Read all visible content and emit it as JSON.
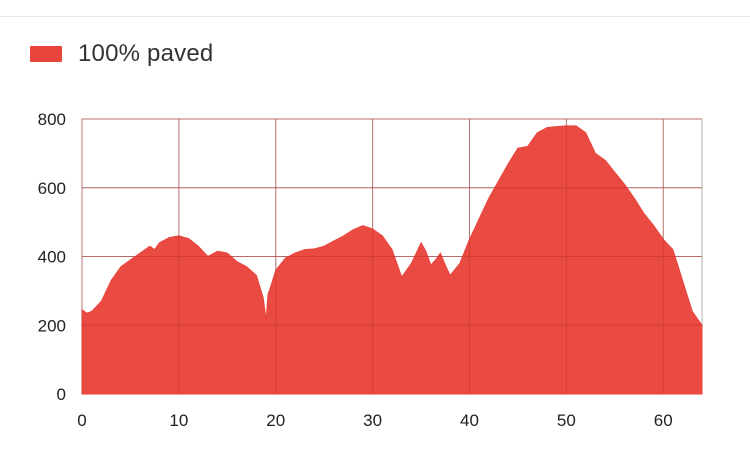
{
  "legend": {
    "label": "100% paved",
    "color": "#e8453c"
  },
  "chart_data": {
    "type": "area",
    "title": "",
    "xlabel": "",
    "ylabel": "",
    "xlim": [
      0,
      64
    ],
    "ylim": [
      0,
      800
    ],
    "x_ticks": [
      0,
      10,
      20,
      30,
      40,
      50,
      60
    ],
    "y_ticks": [
      0,
      200,
      400,
      600,
      800
    ],
    "grid": true,
    "legend_position": "top-left",
    "series": [
      {
        "name": "100% paved",
        "color": "#e8453c",
        "x": [
          0,
          0.5,
          1,
          2,
          3,
          4,
          5,
          6,
          7,
          7.5,
          8,
          9,
          10,
          11,
          12,
          13,
          14,
          15,
          16,
          17,
          18,
          18.7,
          19,
          19.2,
          19.4,
          20,
          21,
          22,
          23,
          24,
          25,
          26,
          27,
          28,
          29,
          30,
          31,
          32,
          33,
          34,
          35,
          35.5,
          36,
          36.5,
          37,
          37.5,
          38,
          39,
          40,
          41,
          42,
          43,
          44,
          45,
          46,
          47,
          48,
          49,
          50,
          51,
          52,
          53,
          54,
          55,
          56,
          57,
          58,
          59,
          60,
          61,
          62,
          63,
          64
        ],
        "values": [
          245,
          235,
          240,
          270,
          330,
          370,
          390,
          410,
          430,
          420,
          440,
          455,
          460,
          452,
          430,
          400,
          415,
          410,
          385,
          370,
          345,
          280,
          215,
          290,
          305,
          360,
          395,
          410,
          420,
          422,
          430,
          445,
          460,
          478,
          490,
          480,
          460,
          420,
          340,
          380,
          440,
          415,
          375,
          390,
          410,
          375,
          345,
          380,
          450,
          510,
          570,
          620,
          670,
          715,
          720,
          760,
          775,
          778,
          780,
          780,
          760,
          700,
          680,
          645,
          610,
          570,
          525,
          490,
          450,
          420,
          330,
          240,
          200
        ]
      }
    ]
  }
}
